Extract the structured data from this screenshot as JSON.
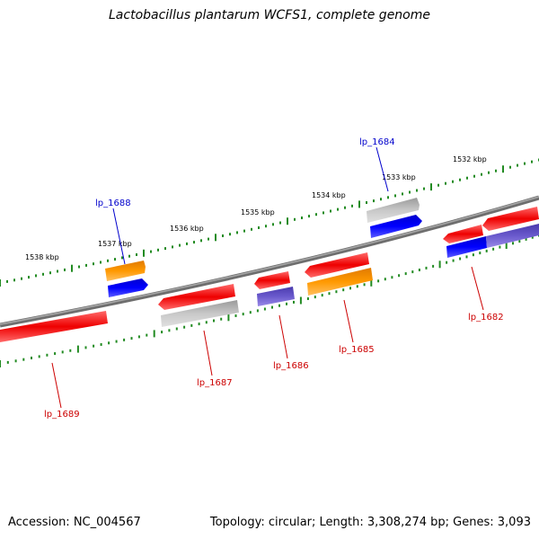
{
  "title": "Lactobacillus plantarum WCFS1, complete genome",
  "footer": {
    "accession": "Accession: NC_004567",
    "summary": "Topology: circular; Length: 3,308,274 bp; Genes: 3,093"
  },
  "colors": {
    "backbone": "#808080",
    "tick": "#228b22",
    "red_gene": "#ee0000",
    "gray_gene": "#b0b0b0",
    "orange_gene": "#ff9900",
    "blue_gene": "#0000ff",
    "purple_gene": "#6a5acd",
    "forward_label": "#0000cc",
    "reverse_label": "#cc0000"
  },
  "scale_labels": [
    "1538 kbp",
    "1537 kbp",
    "1536 kbp",
    "1535 kbp",
    "1534 kbp",
    "1533 kbp",
    "1532 kbp"
  ],
  "gene_labels": {
    "forward": [
      "lp_1688",
      "lp_1684"
    ],
    "reverse": [
      "lp_1689",
      "lp_1687",
      "lp_1686",
      "lp_1685",
      "lp_1682"
    ]
  }
}
